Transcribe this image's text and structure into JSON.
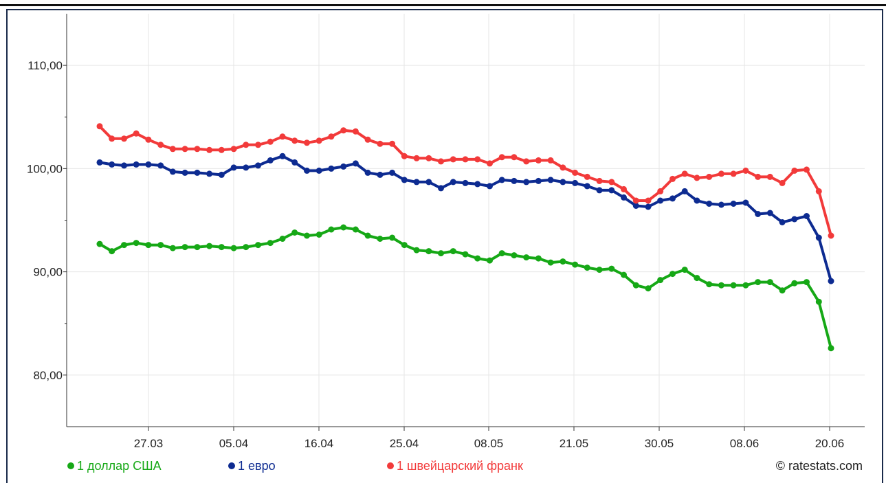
{
  "chart_data": {
    "type": "line",
    "title": "",
    "xlabel": "",
    "ylabel": "",
    "ylim": [
      75,
      115
    ],
    "y_ticks": [
      80,
      90,
      100,
      110
    ],
    "y_tick_labels": [
      "80,00",
      "90,00",
      "100,00",
      "110,00"
    ],
    "x_tick_labels": [
      "27.03",
      "05.04",
      "16.04",
      "25.04",
      "08.05",
      "21.05",
      "30.05",
      "08.06",
      "20.06"
    ],
    "grid": true,
    "legend_position": "bottom",
    "credit": "© ratestats.com",
    "series": [
      {
        "name": "1 доллар США",
        "color": "#16a816",
        "values": [
          92.7,
          92.0,
          92.6,
          92.8,
          92.6,
          92.6,
          92.3,
          92.4,
          92.4,
          92.5,
          92.4,
          92.3,
          92.4,
          92.6,
          92.8,
          93.2,
          93.8,
          93.5,
          93.6,
          94.1,
          94.3,
          94.1,
          93.5,
          93.2,
          93.3,
          92.6,
          92.1,
          92.0,
          91.8,
          92.0,
          91.7,
          91.3,
          91.1,
          91.8,
          91.6,
          91.4,
          91.3,
          90.9,
          91.0,
          90.7,
          90.4,
          90.2,
          90.3,
          89.7,
          88.7,
          88.4,
          89.2,
          89.8,
          90.2,
          89.4,
          88.8,
          88.7,
          88.7,
          88.7,
          89.0,
          89.0,
          88.2,
          88.9,
          89.0,
          87.1,
          82.6
        ]
      },
      {
        "name": "1 евро",
        "color": "#0d2b91",
        "values": [
          100.6,
          100.4,
          100.3,
          100.4,
          100.4,
          100.3,
          99.7,
          99.6,
          99.6,
          99.5,
          99.4,
          100.1,
          100.1,
          100.3,
          100.8,
          101.2,
          100.6,
          99.8,
          99.8,
          100.0,
          100.2,
          100.5,
          99.6,
          99.4,
          99.6,
          98.9,
          98.7,
          98.7,
          98.1,
          98.7,
          98.6,
          98.5,
          98.3,
          98.9,
          98.8,
          98.7,
          98.8,
          98.9,
          98.7,
          98.6,
          98.3,
          97.9,
          97.9,
          97.2,
          96.4,
          96.3,
          96.9,
          97.1,
          97.8,
          96.9,
          96.6,
          96.5,
          96.6,
          96.7,
          95.6,
          95.7,
          94.8,
          95.1,
          95.4,
          93.3,
          89.1
        ]
      },
      {
        "name": "1 швейцарский франк",
        "color": "#f23a3a",
        "values": [
          104.1,
          102.9,
          102.9,
          103.4,
          102.8,
          102.3,
          101.9,
          101.9,
          101.9,
          101.8,
          101.8,
          101.9,
          102.3,
          102.3,
          102.6,
          103.1,
          102.7,
          102.5,
          102.7,
          103.1,
          103.7,
          103.6,
          102.8,
          102.4,
          102.4,
          101.2,
          101.0,
          101.0,
          100.7,
          100.9,
          100.9,
          100.9,
          100.5,
          101.1,
          101.1,
          100.7,
          100.8,
          100.8,
          100.1,
          99.6,
          99.2,
          98.8,
          98.7,
          98.0,
          96.9,
          96.9,
          97.8,
          99.0,
          99.5,
          99.1,
          99.2,
          99.5,
          99.5,
          99.8,
          99.2,
          99.2,
          98.6,
          99.8,
          99.9,
          97.8,
          93.5
        ]
      }
    ]
  }
}
